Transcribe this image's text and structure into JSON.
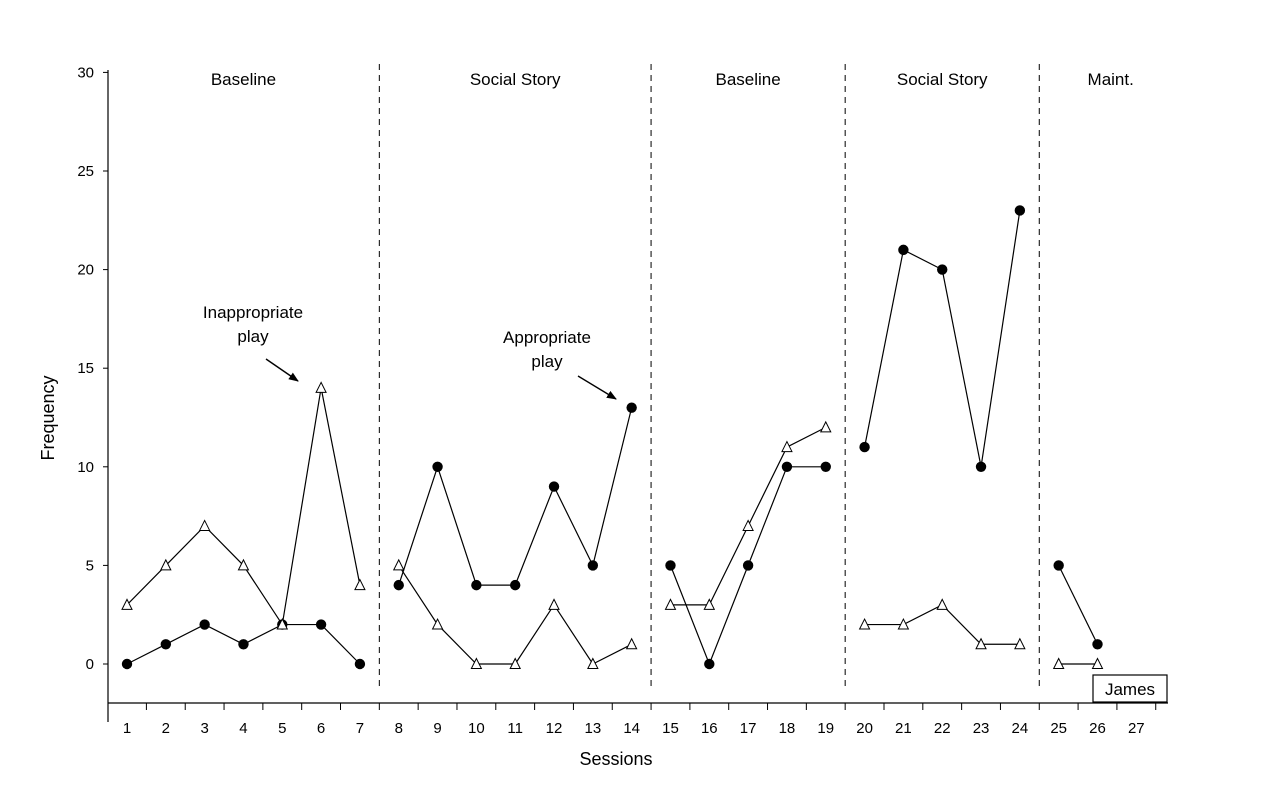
{
  "chart_data": {
    "type": "line",
    "xlabel": "Sessions",
    "ylabel": "Frequency",
    "ylim": [
      -2,
      30
    ],
    "yticks": [
      0,
      5,
      10,
      15,
      20,
      25,
      30
    ],
    "xticks": [
      1,
      2,
      3,
      4,
      5,
      6,
      7,
      8,
      9,
      10,
      11,
      12,
      13,
      14,
      15,
      16,
      17,
      18,
      19,
      20,
      21,
      22,
      23,
      24,
      25,
      26,
      27
    ],
    "grid": false,
    "phases": [
      {
        "label": "Baseline",
        "sessions": [
          1,
          7
        ]
      },
      {
        "label": "Social Story",
        "sessions": [
          8,
          14
        ]
      },
      {
        "label": "Baseline",
        "sessions": [
          15,
          19
        ]
      },
      {
        "label": "Social Story",
        "sessions": [
          20,
          24
        ]
      },
      {
        "label": "Maint.",
        "sessions": [
          25,
          27
        ]
      }
    ],
    "series": [
      {
        "name": "Appropriate play",
        "marker": "filled-circle",
        "segments": [
          [
            [
              1,
              0
            ],
            [
              2,
              1
            ],
            [
              3,
              2
            ],
            [
              4,
              1
            ],
            [
              5,
              2
            ],
            [
              6,
              2
            ],
            [
              7,
              0
            ]
          ],
          [
            [
              8,
              4
            ],
            [
              9,
              10
            ],
            [
              10,
              4
            ],
            [
              11,
              4
            ],
            [
              12,
              9
            ],
            [
              13,
              5
            ],
            [
              14,
              13
            ]
          ],
          [
            [
              15,
              5
            ],
            [
              16,
              0
            ],
            [
              17,
              5
            ],
            [
              18,
              10
            ],
            [
              19,
              10
            ]
          ],
          [
            [
              20,
              11
            ],
            [
              21,
              21
            ],
            [
              22,
              20
            ],
            [
              23,
              10
            ],
            [
              24,
              23
            ]
          ],
          [
            [
              25,
              5
            ],
            [
              26,
              1
            ]
          ]
        ]
      },
      {
        "name": "Inappropriate play",
        "marker": "open-triangle",
        "segments": [
          [
            [
              1,
              3
            ],
            [
              2,
              5
            ],
            [
              3,
              7
            ],
            [
              4,
              5
            ],
            [
              5,
              2
            ],
            [
              6,
              14
            ],
            [
              7,
              4
            ]
          ],
          [
            [
              8,
              5
            ],
            [
              9,
              2
            ],
            [
              10,
              0
            ],
            [
              11,
              0
            ],
            [
              12,
              3
            ],
            [
              13,
              0
            ],
            [
              14,
              1
            ]
          ],
          [
            [
              15,
              3
            ],
            [
              16,
              3
            ],
            [
              17,
              7
            ],
            [
              18,
              11
            ],
            [
              19,
              12
            ]
          ],
          [
            [
              20,
              2
            ],
            [
              21,
              2
            ],
            [
              22,
              3
            ],
            [
              23,
              1
            ],
            [
              24,
              1
            ]
          ],
          [
            [
              25,
              0
            ],
            [
              26,
              0
            ]
          ]
        ]
      }
    ],
    "annotations": [
      {
        "lines": [
          "Inappropriate",
          "play"
        ],
        "points_to": {
          "series": "Inappropriate play",
          "session": 6,
          "value": 14
        }
      },
      {
        "lines": [
          "Appropriate",
          "play"
        ],
        "points_to": {
          "series": "Appropriate play",
          "session": 14,
          "value": 13
        }
      }
    ],
    "participant_label": "James"
  }
}
